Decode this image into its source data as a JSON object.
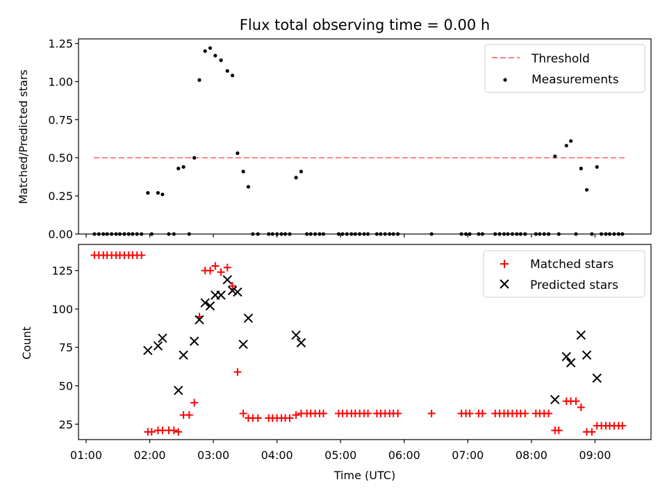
{
  "chart_data": [
    {
      "type": "scatter",
      "title": "Flux total observing time = 0.00 h",
      "ylabel": "Matched/Predicted stars",
      "xlabel": "",
      "ylim": [
        0,
        1.28
      ],
      "xlim": [
        0.88,
        9.88
      ],
      "yticks": [
        {
          "value": 0,
          "label": "0.00"
        },
        {
          "value": 0.25,
          "label": "0.25"
        },
        {
          "value": 0.5,
          "label": "0.50"
        },
        {
          "value": 0.75,
          "label": "0.75"
        },
        {
          "value": 1.0,
          "label": "1.00"
        },
        {
          "value": 1.25,
          "label": "1.25"
        }
      ],
      "legend_position": "top-right",
      "threshold": {
        "name": "Threshold",
        "value": 0.5,
        "x": [
          1.12,
          9.5
        ],
        "color": "#ff7f7f"
      },
      "series": [
        {
          "name": "Measurements",
          "color": "#000000",
          "points": [
            [
              1.13,
              0
            ],
            [
              1.2,
              0
            ],
            [
              1.27,
              0
            ],
            [
              1.33,
              0
            ],
            [
              1.4,
              0
            ],
            [
              1.47,
              0
            ],
            [
              1.53,
              0
            ],
            [
              1.6,
              0
            ],
            [
              1.67,
              0
            ],
            [
              1.73,
              0
            ],
            [
              1.8,
              0
            ],
            [
              1.87,
              0
            ],
            [
              1.97,
              0.27
            ],
            [
              2.03,
              0
            ],
            [
              2.13,
              0.27
            ],
            [
              2.2,
              0.26
            ],
            [
              2.3,
              0
            ],
            [
              2.38,
              0
            ],
            [
              2.45,
              0.43
            ],
            [
              2.53,
              0.44
            ],
            [
              2.62,
              0
            ],
            [
              2.7,
              0.5
            ],
            [
              2.78,
              1.01
            ],
            [
              2.87,
              1.2
            ],
            [
              2.95,
              1.22
            ],
            [
              3.03,
              1.17
            ],
            [
              3.12,
              1.14
            ],
            [
              3.22,
              1.07
            ],
            [
              3.3,
              1.04
            ],
            [
              3.38,
              0.53
            ],
            [
              3.47,
              0.41
            ],
            [
              3.55,
              0.31
            ],
            [
              3.62,
              0
            ],
            [
              3.7,
              0
            ],
            [
              3.87,
              0
            ],
            [
              3.93,
              0
            ],
            [
              4.0,
              0
            ],
            [
              4.07,
              0
            ],
            [
              4.13,
              0
            ],
            [
              4.2,
              0
            ],
            [
              4.3,
              0.37
            ],
            [
              4.38,
              0.41
            ],
            [
              4.47,
              0
            ],
            [
              4.53,
              0
            ],
            [
              4.6,
              0
            ],
            [
              4.67,
              0
            ],
            [
              4.73,
              0
            ],
            [
              4.97,
              0
            ],
            [
              5.03,
              0
            ],
            [
              5.1,
              0
            ],
            [
              5.17,
              0
            ],
            [
              5.23,
              0
            ],
            [
              5.3,
              0
            ],
            [
              5.37,
              0
            ],
            [
              5.43,
              0
            ],
            [
              5.57,
              0
            ],
            [
              5.63,
              0
            ],
            [
              5.7,
              0
            ],
            [
              5.77,
              0
            ],
            [
              5.83,
              0
            ],
            [
              5.9,
              0
            ],
            [
              6.43,
              0
            ],
            [
              6.9,
              0
            ],
            [
              6.97,
              0
            ],
            [
              7.03,
              0
            ],
            [
              7.17,
              0
            ],
            [
              7.23,
              0
            ],
            [
              7.43,
              0
            ],
            [
              7.5,
              0
            ],
            [
              7.57,
              0
            ],
            [
              7.63,
              0
            ],
            [
              7.7,
              0
            ],
            [
              7.77,
              0
            ],
            [
              7.83,
              0
            ],
            [
              7.9,
              0
            ],
            [
              8.07,
              0
            ],
            [
              8.13,
              0
            ],
            [
              8.2,
              0
            ],
            [
              8.27,
              0
            ],
            [
              8.37,
              0.51
            ],
            [
              8.43,
              0
            ],
            [
              8.55,
              0.58
            ],
            [
              8.62,
              0.61
            ],
            [
              8.7,
              0
            ],
            [
              8.78,
              0.43
            ],
            [
              8.87,
              0.29
            ],
            [
              8.95,
              0
            ],
            [
              9.03,
              0.44
            ],
            [
              9.1,
              0
            ],
            [
              9.17,
              0
            ],
            [
              9.23,
              0
            ],
            [
              9.3,
              0
            ],
            [
              9.37,
              0
            ],
            [
              9.43,
              0
            ]
          ]
        }
      ]
    },
    {
      "type": "scatter",
      "title": "",
      "ylabel": "Count",
      "xlabel": "Time (UTC)",
      "ylim": [
        15,
        142
      ],
      "xlim": [
        0.88,
        9.88
      ],
      "yticks": [
        {
          "value": 25,
          "label": "25"
        },
        {
          "value": 50,
          "label": "50"
        },
        {
          "value": 75,
          "label": "75"
        },
        {
          "value": 100,
          "label": "100"
        },
        {
          "value": 125,
          "label": "125"
        }
      ],
      "xticks": [
        {
          "value": 1,
          "label": "01:00"
        },
        {
          "value": 2,
          "label": "02:00"
        },
        {
          "value": 3,
          "label": "03:00"
        },
        {
          "value": 4,
          "label": "04:00"
        },
        {
          "value": 5,
          "label": "05:00"
        },
        {
          "value": 6,
          "label": "06:00"
        },
        {
          "value": 7,
          "label": "07:00"
        },
        {
          "value": 8,
          "label": "08:00"
        },
        {
          "value": 9,
          "label": "09:00"
        }
      ],
      "legend_position": "top-right",
      "series": [
        {
          "name": "Matched stars",
          "color": "#ff0000",
          "marker": "plus",
          "points": [
            [
              1.13,
              135
            ],
            [
              1.2,
              135
            ],
            [
              1.27,
              135
            ],
            [
              1.33,
              135
            ],
            [
              1.4,
              135
            ],
            [
              1.47,
              135
            ],
            [
              1.53,
              135
            ],
            [
              1.6,
              135
            ],
            [
              1.67,
              135
            ],
            [
              1.73,
              135
            ],
            [
              1.8,
              135
            ],
            [
              1.87,
              135
            ],
            [
              1.97,
              20
            ],
            [
              2.03,
              20
            ],
            [
              2.13,
              21
            ],
            [
              2.2,
              21
            ],
            [
              2.3,
              21
            ],
            [
              2.38,
              21
            ],
            [
              2.45,
              20
            ],
            [
              2.53,
              31
            ],
            [
              2.62,
              31
            ],
            [
              2.7,
              39
            ],
            [
              2.78,
              95
            ],
            [
              2.87,
              125
            ],
            [
              2.95,
              125
            ],
            [
              3.03,
              128
            ],
            [
              3.12,
              124
            ],
            [
              3.22,
              127
            ],
            [
              3.3,
              115
            ],
            [
              3.38,
              59
            ],
            [
              3.47,
              32
            ],
            [
              3.55,
              29
            ],
            [
              3.62,
              29
            ],
            [
              3.7,
              29
            ],
            [
              3.87,
              29
            ],
            [
              3.93,
              29
            ],
            [
              4.0,
              29
            ],
            [
              4.07,
              29
            ],
            [
              4.13,
              29
            ],
            [
              4.2,
              29
            ],
            [
              4.3,
              31
            ],
            [
              4.38,
              32
            ],
            [
              4.47,
              32
            ],
            [
              4.53,
              32
            ],
            [
              4.6,
              32
            ],
            [
              4.67,
              32
            ],
            [
              4.73,
              32
            ],
            [
              4.97,
              32
            ],
            [
              5.03,
              32
            ],
            [
              5.1,
              32
            ],
            [
              5.17,
              32
            ],
            [
              5.23,
              32
            ],
            [
              5.3,
              32
            ],
            [
              5.37,
              32
            ],
            [
              5.43,
              32
            ],
            [
              5.57,
              32
            ],
            [
              5.63,
              32
            ],
            [
              5.7,
              32
            ],
            [
              5.77,
              32
            ],
            [
              5.83,
              32
            ],
            [
              5.9,
              32
            ],
            [
              6.43,
              32
            ],
            [
              6.9,
              32
            ],
            [
              6.97,
              32
            ],
            [
              7.03,
              32
            ],
            [
              7.17,
              32
            ],
            [
              7.23,
              32
            ],
            [
              7.43,
              32
            ],
            [
              7.5,
              32
            ],
            [
              7.57,
              32
            ],
            [
              7.63,
              32
            ],
            [
              7.7,
              32
            ],
            [
              7.77,
              32
            ],
            [
              7.83,
              32
            ],
            [
              7.9,
              32
            ],
            [
              8.07,
              32
            ],
            [
              8.13,
              32
            ],
            [
              8.2,
              32
            ],
            [
              8.27,
              32
            ],
            [
              8.37,
              21
            ],
            [
              8.43,
              21
            ],
            [
              8.55,
              40
            ],
            [
              8.62,
              40
            ],
            [
              8.7,
              40
            ],
            [
              8.78,
              36
            ],
            [
              8.87,
              20
            ],
            [
              8.95,
              20
            ],
            [
              9.03,
              24
            ],
            [
              9.1,
              24
            ],
            [
              9.17,
              24
            ],
            [
              9.23,
              24
            ],
            [
              9.3,
              24
            ],
            [
              9.37,
              24
            ],
            [
              9.43,
              24
            ]
          ]
        },
        {
          "name": "Predicted stars",
          "color": "#000000",
          "marker": "x",
          "points": [
            [
              1.97,
              73
            ],
            [
              2.13,
              76
            ],
            [
              2.2,
              81
            ],
            [
              2.45,
              47
            ],
            [
              2.53,
              70
            ],
            [
              2.7,
              79
            ],
            [
              2.78,
              93
            ],
            [
              2.87,
              104
            ],
            [
              2.95,
              102
            ],
            [
              3.03,
              109
            ],
            [
              3.12,
              109
            ],
            [
              3.22,
              119
            ],
            [
              3.3,
              112
            ],
            [
              3.38,
              111
            ],
            [
              3.47,
              77
            ],
            [
              3.55,
              94
            ],
            [
              4.3,
              83
            ],
            [
              4.38,
              78
            ],
            [
              8.37,
              41
            ],
            [
              8.55,
              69
            ],
            [
              8.62,
              65
            ],
            [
              8.78,
              83
            ],
            [
              8.87,
              70
            ],
            [
              9.03,
              55
            ]
          ]
        }
      ]
    }
  ]
}
